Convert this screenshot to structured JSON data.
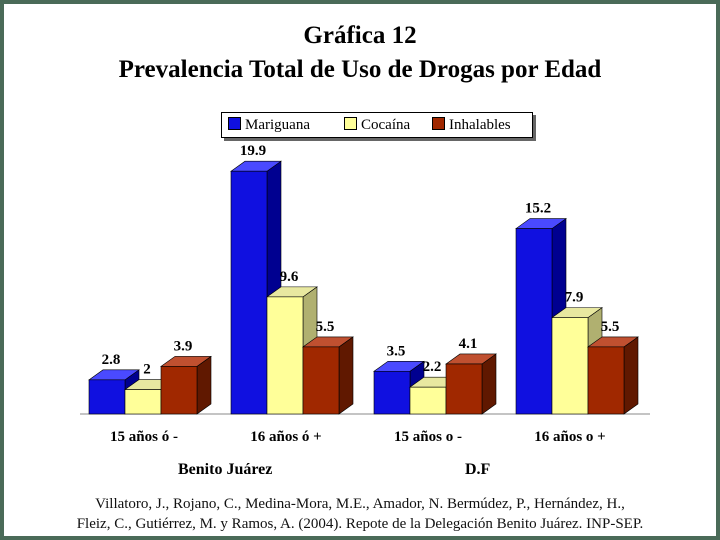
{
  "chart_data": {
    "type": "bar",
    "title": "Gráfica 12",
    "subtitle": "Prevalencia Total de Uso de Drogas por Edad",
    "categories": [
      "15 años ó -",
      "16 años ó +",
      "15 años o -",
      "16 años o +"
    ],
    "groups": [
      "Benito Juárez",
      "D.F"
    ],
    "series": [
      {
        "name": "Mariguana",
        "values": [
          2.8,
          19.9,
          3.5,
          15.2
        ],
        "color": "#1010e0"
      },
      {
        "name": "Cocaína",
        "values": [
          2,
          9.6,
          2.2,
          7.9
        ],
        "color": "#ffff99"
      },
      {
        "name": "Inhalables",
        "values": [
          3.9,
          5.5,
          4.1,
          5.5
        ],
        "color": "#a02800"
      }
    ],
    "value_labels": [
      [
        "2.8",
        "19.9",
        "3.5",
        "15.2"
      ],
      [
        "2",
        "9.6",
        "2.2",
        "7.9"
      ],
      [
        "3.9",
        "5.5",
        "4.1",
        "5.5"
      ]
    ],
    "ylim": [
      0,
      20
    ],
    "grid": false,
    "legend_position": "top",
    "three_d": true
  },
  "footer": {
    "line1": "Villatoro, J., Rojano, C., Medina-Mora, M.E., Amador, N. Bermúdez, P., Hernández, H.,",
    "line2": "Fleiz, C., Gutiérrez, M. y Ramos, A. (2004). Repote de la Delegación Benito Juárez. INP-SEP."
  },
  "colors": {
    "frame": "#4a6b58",
    "mariguana_side": "#000090",
    "cocaina_side": "#b0b070",
    "inhalables_side": "#601800"
  }
}
